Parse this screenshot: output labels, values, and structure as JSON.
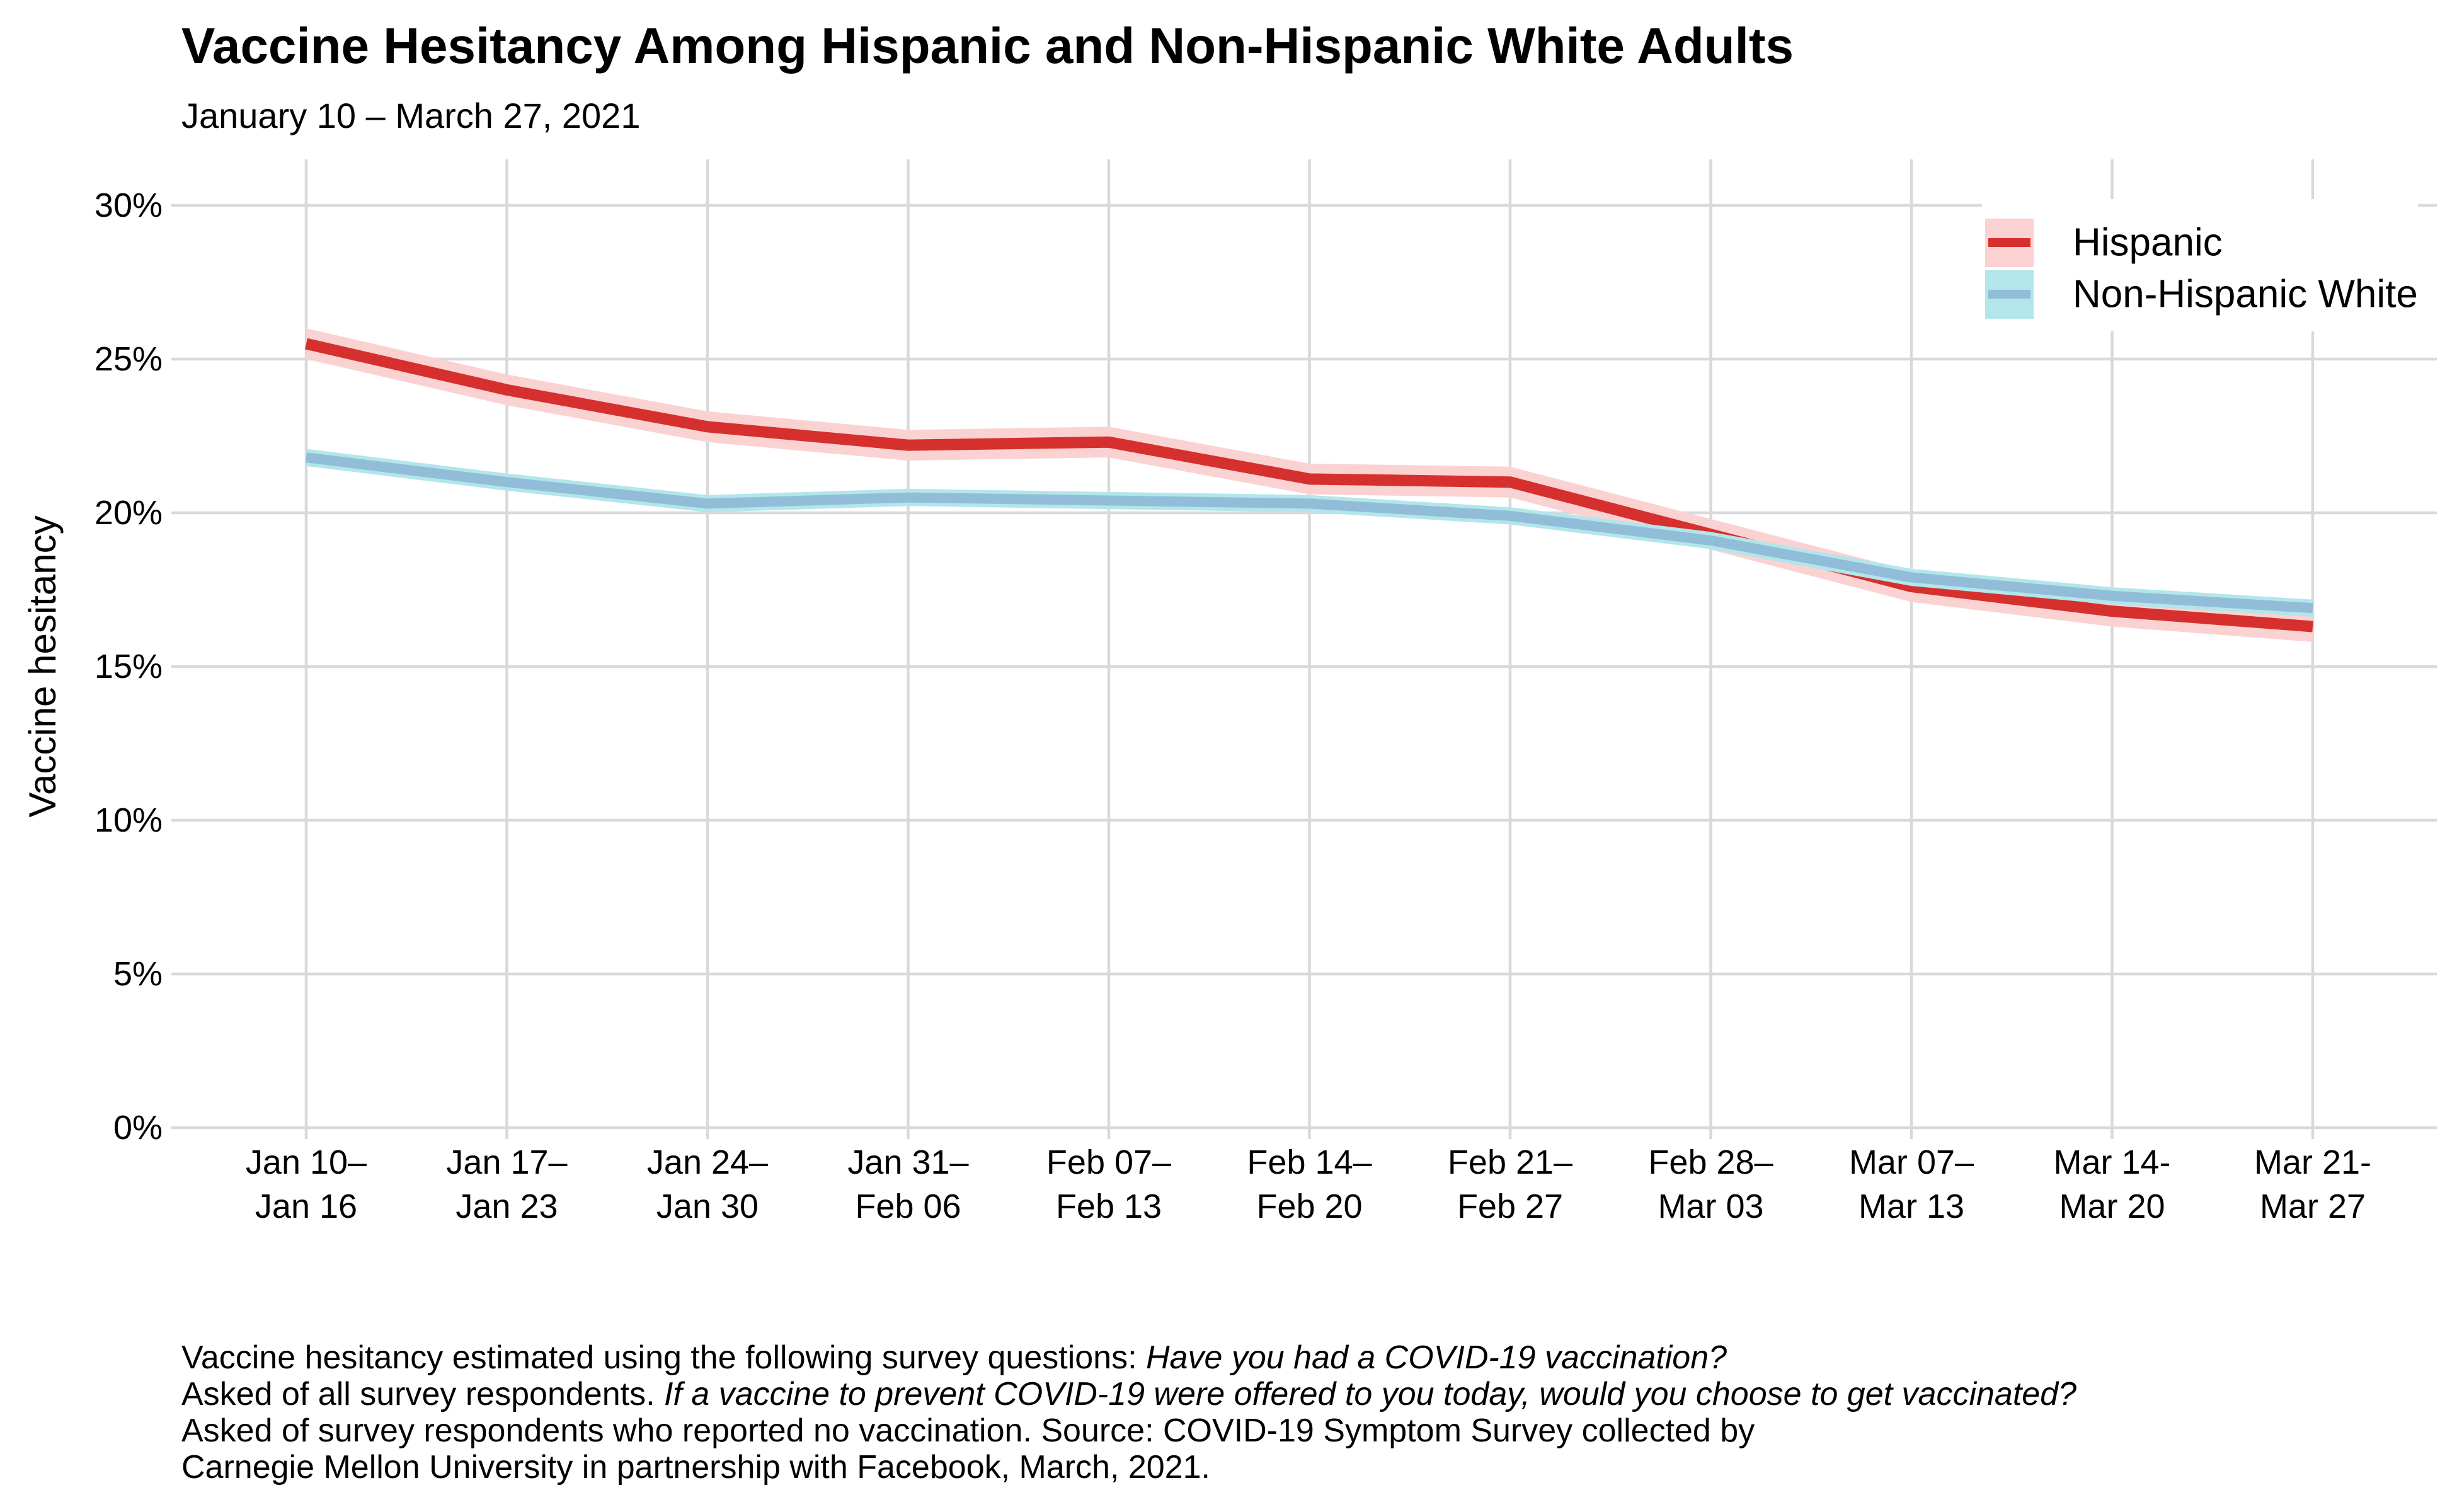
{
  "chart_data": {
    "type": "line",
    "title": "Vaccine Hesitancy Among Hispanic and Non-Hispanic White Adults",
    "subtitle": "January 10 – March 27, 2021",
    "ylabel": "Vaccine hesitancy",
    "ylim": [
      0,
      30
    ],
    "ytick_values": [
      0,
      5,
      10,
      15,
      20,
      25,
      30
    ],
    "ytick_labels": [
      "0%",
      "5%",
      "10%",
      "15%",
      "20%",
      "25%",
      "30%"
    ],
    "categories": [
      [
        "Jan 10–",
        "Jan 16"
      ],
      [
        "Jan 17–",
        "Jan 23"
      ],
      [
        "Jan 24–",
        "Jan 30"
      ],
      [
        "Jan 31–",
        "Feb 06"
      ],
      [
        "Feb 07–",
        "Feb 13"
      ],
      [
        "Feb 14–",
        "Feb 20"
      ],
      [
        "Feb 21–",
        "Feb 27"
      ],
      [
        "Feb 28–",
        "Mar 03"
      ],
      [
        "Mar 07–",
        "Mar 13"
      ],
      [
        "Mar 14-",
        "Mar 20"
      ],
      [
        "Mar 21-",
        "Mar 27"
      ]
    ],
    "series": [
      {
        "name": "Hispanic",
        "color": "#d6302e",
        "band_color": "#fad2d1",
        "line_width": 18,
        "band_halfwidth_pct": 0.5,
        "values": [
          25.5,
          24.0,
          22.8,
          22.2,
          22.3,
          21.1,
          21.0,
          19.3,
          17.6,
          16.8,
          16.3
        ]
      },
      {
        "name": "Non-Hispanic White",
        "color": "#92bdd8",
        "band_color": "#b2e6ea",
        "line_width": 16,
        "band_halfwidth_pct": 0.28,
        "values": [
          21.8,
          21.0,
          20.3,
          20.5,
          20.4,
          20.3,
          19.9,
          19.1,
          17.9,
          17.3,
          16.9
        ]
      }
    ],
    "grid": true,
    "grid_color": "#d9d9d9",
    "legend_position": "top-right",
    "legend_background": "#ffffff"
  },
  "caption": {
    "line1_normal": "Vaccine hesitancy estimated using the following survey questions: ",
    "line1_italic": "Have you had a COVID-19 vaccination?",
    "line2_normal": "Asked of all survey respondents. ",
    "line2_italic": "If a vaccine to prevent COVID-19 were offered to you today, would you choose to get vaccinated?",
    "line3": "Asked of survey respondents who reported no vaccination. Source: COVID-19 Symptom Survey collected by",
    "line4": "Carnegie Mellon University in partnership with Facebook, March, 2021."
  }
}
